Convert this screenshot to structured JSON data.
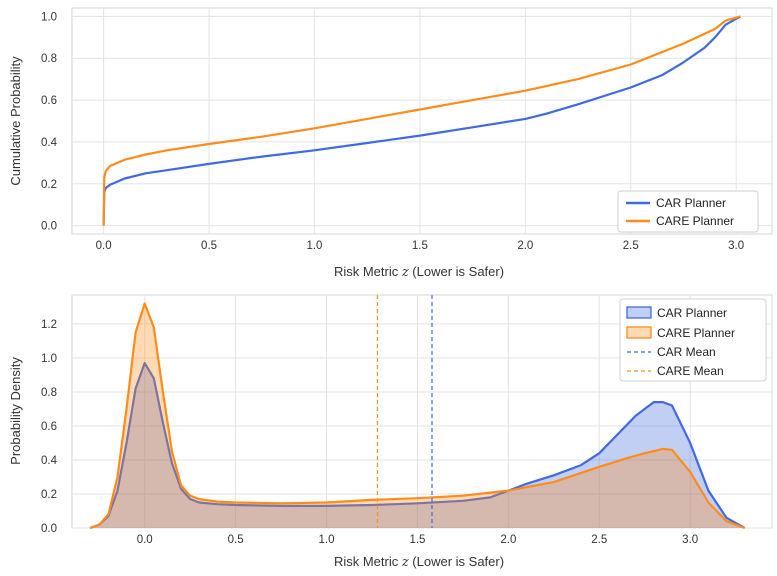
{
  "chart_data": [
    {
      "type": "line",
      "xlabel": "Risk Metric z (Lower is Safer)",
      "ylabel": "Cumulative Probability",
      "xlim": [
        -0.15,
        3.17
      ],
      "ylim": [
        -0.04,
        1.04
      ],
      "xticks": [
        "0.0",
        "0.5",
        "1.0",
        "1.5",
        "2.0",
        "2.5",
        "3.0"
      ],
      "yticks": [
        "0.0",
        "0.2",
        "0.4",
        "0.6",
        "0.8",
        "1.0"
      ],
      "grid": true,
      "legend": "lower-right",
      "series": [
        {
          "name": "CAR Planner",
          "color": "#4169e1",
          "x": [
            0.0,
            0.003,
            0.01,
            0.03,
            0.1,
            0.2,
            0.3,
            0.5,
            0.75,
            1.0,
            1.25,
            1.5,
            1.75,
            2.0,
            2.1,
            2.25,
            2.5,
            2.65,
            2.75,
            2.85,
            2.9,
            2.95,
            3.02
          ],
          "y": [
            0.0,
            0.16,
            0.18,
            0.195,
            0.225,
            0.25,
            0.265,
            0.295,
            0.33,
            0.36,
            0.395,
            0.43,
            0.47,
            0.51,
            0.535,
            0.58,
            0.66,
            0.72,
            0.78,
            0.85,
            0.9,
            0.96,
            1.0
          ]
        },
        {
          "name": "CARE Planner",
          "color": "#ff8c1a",
          "x": [
            0.0,
            0.003,
            0.01,
            0.03,
            0.1,
            0.2,
            0.3,
            0.5,
            0.75,
            1.0,
            1.25,
            1.5,
            1.75,
            2.0,
            2.25,
            2.5,
            2.75,
            2.9,
            2.95,
            3.02
          ],
          "y": [
            0.0,
            0.23,
            0.26,
            0.285,
            0.315,
            0.34,
            0.36,
            0.39,
            0.425,
            0.465,
            0.51,
            0.555,
            0.6,
            0.645,
            0.7,
            0.77,
            0.87,
            0.94,
            0.98,
            1.0
          ]
        }
      ]
    },
    {
      "type": "area",
      "xlabel": "Risk Metric z (Lower is Safer)",
      "ylabel": "Probability Density",
      "xlim": [
        -0.4,
        3.45
      ],
      "ylim": [
        0.0,
        1.37
      ],
      "xticks": [
        "0.0",
        "0.5",
        "1.0",
        "1.5",
        "2.0",
        "2.5",
        "3.0"
      ],
      "yticks": [
        "0.0",
        "0.2",
        "0.4",
        "0.6",
        "0.8",
        "1.0",
        "1.2"
      ],
      "grid": true,
      "legend": "top-right",
      "series": [
        {
          "name": "CAR Planner",
          "color": "#4169e1",
          "fill": "rgba(65,105,225,0.32)",
          "x": [
            -0.3,
            -0.25,
            -0.2,
            -0.15,
            -0.1,
            -0.05,
            0.0,
            0.05,
            0.1,
            0.15,
            0.2,
            0.25,
            0.3,
            0.4,
            0.5,
            0.75,
            1.0,
            1.25,
            1.5,
            1.75,
            1.9,
            2.0,
            2.1,
            2.25,
            2.4,
            2.5,
            2.6,
            2.7,
            2.8,
            2.85,
            2.9,
            3.0,
            3.05,
            3.1,
            3.2,
            3.3
          ],
          "y": [
            0.0,
            0.02,
            0.07,
            0.22,
            0.5,
            0.82,
            0.97,
            0.88,
            0.62,
            0.38,
            0.23,
            0.17,
            0.15,
            0.14,
            0.135,
            0.13,
            0.13,
            0.135,
            0.145,
            0.16,
            0.18,
            0.22,
            0.26,
            0.31,
            0.37,
            0.44,
            0.55,
            0.66,
            0.74,
            0.74,
            0.72,
            0.5,
            0.36,
            0.22,
            0.06,
            0.0
          ]
        },
        {
          "name": "CARE Planner",
          "color": "#ff8c1a",
          "fill": "rgba(255,140,26,0.32)",
          "x": [
            -0.3,
            -0.25,
            -0.2,
            -0.15,
            -0.1,
            -0.05,
            0.0,
            0.05,
            0.1,
            0.15,
            0.2,
            0.25,
            0.3,
            0.4,
            0.5,
            0.75,
            1.0,
            1.25,
            1.5,
            1.75,
            2.0,
            2.25,
            2.5,
            2.65,
            2.75,
            2.85,
            2.9,
            3.0,
            3.05,
            3.1,
            3.2,
            3.3
          ],
          "y": [
            0.0,
            0.02,
            0.08,
            0.3,
            0.7,
            1.15,
            1.32,
            1.18,
            0.8,
            0.45,
            0.25,
            0.19,
            0.17,
            0.155,
            0.15,
            0.145,
            0.15,
            0.165,
            0.175,
            0.19,
            0.22,
            0.27,
            0.36,
            0.41,
            0.44,
            0.465,
            0.46,
            0.33,
            0.24,
            0.15,
            0.04,
            0.0
          ]
        }
      ],
      "vlines": [
        {
          "name": "CAR Mean",
          "x": 1.58,
          "color": "#4169e1",
          "style": "dashed"
        },
        {
          "name": "CARE Mean",
          "x": 1.28,
          "color": "#ff8c1a",
          "style": "dashed"
        }
      ]
    }
  ]
}
